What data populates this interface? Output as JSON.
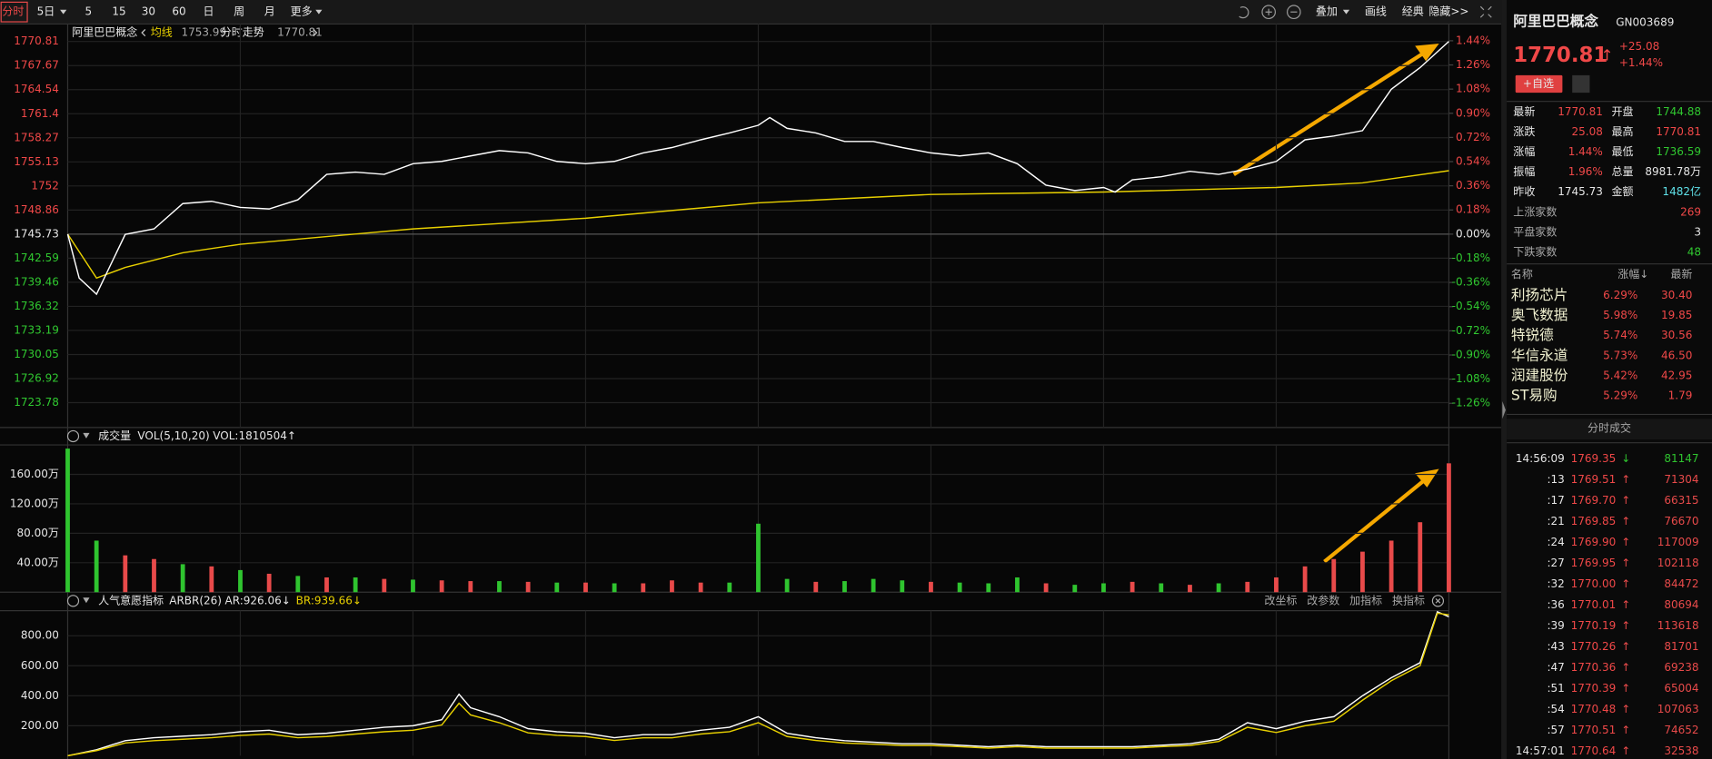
{
  "toolbar": {
    "left": [
      "分时",
      "5日",
      "5",
      "15",
      "30",
      "60",
      "日",
      "周",
      "月",
      "更多"
    ],
    "right": [
      "叠加",
      "画线",
      "经典",
      "隐藏>>"
    ]
  },
  "chart_data": [
    {
      "type": "line",
      "title": "阿里巴巴概念",
      "xlim": [
        0,
        240
      ],
      "ylim": [
        1720.55,
        1771.95
      ],
      "yticks": [
        1770.81,
        1767.67,
        1764.54,
        1761.4,
        1758.27,
        1755.13,
        1752,
        1748.86,
        1745.73,
        1742.59,
        1739.46,
        1736.32,
        1733.19,
        1730.05,
        1726.92,
        1723.78
      ],
      "y2lim": [
        -1.44,
        1.5
      ],
      "y2ticks": [
        {
          "value": 1.44,
          "label": "1.44%"
        },
        {
          "value": 1.26,
          "label": "1.26%"
        },
        {
          "value": 1.08,
          "label": "1.08%"
        },
        {
          "value": 0.9,
          "label": "0.90%"
        },
        {
          "value": 0.72,
          "label": "0.72%"
        },
        {
          "value": 0.54,
          "label": "0.54%"
        },
        {
          "value": 0.36,
          "label": "0.36%"
        },
        {
          "value": 0.18,
          "label": "0.18%"
        },
        {
          "value": 0,
          "label": "0.00%"
        },
        {
          "value": -0.18,
          "label": "-0.18%"
        },
        {
          "value": -0.36,
          "label": "-0.36%"
        },
        {
          "value": -0.54,
          "label": "-0.54%"
        },
        {
          "value": -0.72,
          "label": "-0.72%"
        },
        {
          "value": -0.9,
          "label": "-0.90%"
        },
        {
          "value": -1.08,
          "label": "-1.08%"
        },
        {
          "value": -1.26,
          "label": "-1.26%"
        }
      ],
      "series": [
        {
          "name": "均线",
          "color": "#e8d000",
          "x": [
            0,
            5,
            10,
            20,
            30,
            60,
            90,
            120,
            150,
            180,
            210,
            225,
            240
          ],
          "values": [
            1745.73,
            1740.0,
            1741.4,
            1743.3,
            1744.4,
            1746.4,
            1747.8,
            1749.8,
            1750.9,
            1751.2,
            1751.8,
            1752.4,
            1753.99
          ]
        },
        {
          "name": "分时走势",
          "color": "#ffffff",
          "x": [
            0,
            2,
            5,
            10,
            15,
            20,
            25,
            30,
            35,
            40,
            45,
            50,
            55,
            60,
            65,
            70,
            75,
            80,
            85,
            90,
            95,
            100,
            105,
            110,
            115,
            120,
            122,
            125,
            130,
            135,
            140,
            145,
            150,
            155,
            160,
            165,
            170,
            175,
            180,
            182,
            185,
            190,
            195,
            200,
            205,
            210,
            215,
            220,
            225,
            230,
            235,
            240
          ],
          "values": [
            1745.73,
            1740.0,
            1737.9,
            1745.7,
            1746.4,
            1749.7,
            1750.0,
            1749.2,
            1749.0,
            1750.2,
            1753.5,
            1753.8,
            1753.5,
            1754.9,
            1755.2,
            1755.9,
            1756.6,
            1756.3,
            1755.2,
            1754.9,
            1755.2,
            1756.3,
            1757.0,
            1758.0,
            1758.9,
            1759.9,
            1760.9,
            1759.5,
            1758.9,
            1757.8,
            1757.8,
            1757.0,
            1756.3,
            1755.9,
            1756.3,
            1754.9,
            1752.1,
            1751.4,
            1751.8,
            1751.2,
            1752.8,
            1753.2,
            1753.9,
            1753.5,
            1754.2,
            1755.2,
            1758.0,
            1758.5,
            1759.2,
            1764.6,
            1767.4,
            1770.81
          ]
        }
      ]
    },
    {
      "type": "bar",
      "title": "成交量",
      "indicator": "VOL(5,10,20)",
      "readout": "VOL:1810504↑",
      "xlim": [
        0,
        240
      ],
      "ylim": [
        0,
        200
      ],
      "yticks": [
        {
          "value": 40,
          "label": "40.00万"
        },
        {
          "value": 80,
          "label": "80.00万"
        },
        {
          "value": 120,
          "label": "120.00万"
        },
        {
          "value": 160,
          "label": "160.00万"
        }
      ],
      "x": [
        0,
        5,
        10,
        15,
        20,
        25,
        30,
        35,
        40,
        45,
        50,
        55,
        60,
        65,
        70,
        75,
        80,
        85,
        90,
        95,
        100,
        105,
        110,
        115,
        120,
        125,
        130,
        135,
        140,
        145,
        150,
        155,
        160,
        165,
        170,
        175,
        180,
        185,
        190,
        195,
        200,
        205,
        210,
        215,
        220,
        225,
        230,
        235,
        240
      ],
      "values": [
        195,
        70,
        50,
        45,
        38,
        35,
        30,
        25,
        22,
        20,
        20,
        18,
        17,
        16,
        15,
        15,
        14,
        13,
        13,
        12,
        12,
        16,
        13,
        13,
        93,
        18,
        14,
        15,
        18,
        16,
        14,
        13,
        12,
        20,
        12,
        10,
        12,
        14,
        12,
        10,
        12,
        14,
        20,
        35,
        45,
        55,
        70,
        95,
        175
      ],
      "colors": [
        "#2fc42f",
        "#2fc42f",
        "#e84a4a",
        "#e84a4a",
        "#2fc42f",
        "#e84a4a",
        "#2fc42f",
        "#e84a4a",
        "#2fc42f",
        "#e84a4a",
        "#2fc42f",
        "#e84a4a",
        "#2fc42f",
        "#e84a4a",
        "#e84a4a",
        "#2fc42f",
        "#e84a4a",
        "#2fc42f",
        "#e84a4a",
        "#2fc42f",
        "#e84a4a",
        "#e84a4a",
        "#e84a4a",
        "#2fc42f",
        "#2fc42f",
        "#2fc42f",
        "#e84a4a",
        "#2fc42f",
        "#2fc42f",
        "#2fc42f",
        "#e84a4a",
        "#2fc42f",
        "#2fc42f",
        "#2fc42f",
        "#e84a4a",
        "#2fc42f",
        "#2fc42f",
        "#e84a4a",
        "#2fc42f",
        "#e84a4a",
        "#2fc42f",
        "#e84a4a",
        "#e84a4a",
        "#e84a4a",
        "#e84a4a",
        "#e84a4a",
        "#e84a4a",
        "#e84a4a",
        "#e84a4a"
      ]
    },
    {
      "type": "line",
      "title": "人气意愿指标",
      "indicator": "ARBR(26)",
      "buttons": [
        "改坐标",
        "改参数",
        "加指标",
        "换指标"
      ],
      "xlim": [
        0,
        240
      ],
      "ylim": [
        0,
        967
      ],
      "yticks": [
        {
          "value": 200,
          "label": "200.00"
        },
        {
          "value": 400,
          "label": "400.00"
        },
        {
          "value": 600,
          "label": "600.00"
        },
        {
          "value": 800,
          "label": "800.00"
        }
      ],
      "series": [
        {
          "name": "AR",
          "readout": "AR:926.06↓",
          "color": "#ffffff",
          "x": [
            0,
            5,
            10,
            15,
            20,
            25,
            30,
            35,
            40,
            45,
            50,
            55,
            60,
            65,
            68,
            70,
            75,
            80,
            85,
            90,
            95,
            100,
            105,
            110,
            115,
            120,
            125,
            130,
            135,
            140,
            145,
            150,
            155,
            160,
            165,
            170,
            175,
            180,
            185,
            190,
            195,
            200,
            205,
            210,
            215,
            220,
            225,
            230,
            235,
            238,
            240
          ],
          "values": [
            0,
            40,
            100,
            120,
            130,
            140,
            160,
            170,
            140,
            150,
            170,
            190,
            200,
            240,
            410,
            320,
            260,
            180,
            160,
            150,
            120,
            140,
            140,
            170,
            190,
            260,
            150,
            120,
            100,
            90,
            80,
            80,
            70,
            60,
            70,
            60,
            60,
            60,
            60,
            70,
            80,
            110,
            220,
            180,
            230,
            260,
            400,
            520,
            620,
            960,
            926.06
          ]
        },
        {
          "name": "BR",
          "readout": "BR:939.66↓",
          "color": "#e8d000",
          "x": [
            0,
            5,
            10,
            15,
            20,
            25,
            30,
            35,
            40,
            45,
            50,
            55,
            60,
            65,
            68,
            70,
            75,
            80,
            85,
            90,
            95,
            100,
            105,
            110,
            115,
            120,
            125,
            130,
            135,
            140,
            145,
            150,
            155,
            160,
            165,
            170,
            175,
            180,
            185,
            190,
            195,
            200,
            205,
            210,
            215,
            220,
            225,
            230,
            235,
            238,
            240
          ],
          "values": [
            0,
            34,
            85,
            100,
            110,
            120,
            135,
            145,
            120,
            128,
            145,
            160,
            170,
            205,
            350,
            272,
            220,
            153,
            136,
            128,
            102,
            119,
            119,
            145,
            160,
            220,
            128,
            102,
            85,
            77,
            68,
            68,
            60,
            51,
            60,
            51,
            51,
            51,
            51,
            60,
            68,
            95,
            190,
            155,
            200,
            230,
            370,
            500,
            600,
            950,
            939.66
          ]
        }
      ]
    }
  ],
  "quote": {
    "name": "阿里巴巴概念",
    "code": "GN003689",
    "price": "1770.81",
    "arrow": "↑",
    "change": "+25.08",
    "percent": "+1.44%",
    "button": "+自选",
    "rows": [
      [
        "最新",
        "1770.81",
        "开盘",
        "1744.88"
      ],
      [
        "涨跌",
        "25.08",
        "最高",
        "1770.81"
      ],
      [
        "涨幅",
        "1.44%",
        "最低",
        "1736.59"
      ],
      [
        "振幅",
        "1.96%",
        "总量",
        "8981.78万"
      ],
      [
        "昨收",
        "1745.73",
        "金额",
        "1482亿"
      ]
    ],
    "counts": [
      [
        "上涨家数",
        "269"
      ],
      [
        "平盘家数",
        "3"
      ],
      [
        "下跌家数",
        "48"
      ]
    ]
  },
  "constituents": {
    "header": [
      "名称",
      "涨幅↓",
      "最新"
    ],
    "rows": [
      [
        "利扬芯片",
        "6.29%",
        "30.40"
      ],
      [
        "奥飞数据",
        "5.98%",
        "19.85"
      ],
      [
        "特锐德",
        "5.74%",
        "30.56"
      ],
      [
        "华信永道",
        "5.73%",
        "46.50"
      ],
      [
        "润建股份",
        "5.42%",
        "42.95"
      ],
      [
        "ST易购",
        "5.29%",
        "1.79"
      ]
    ]
  },
  "trades": {
    "title": "分时成交",
    "rows": [
      [
        "14:56:09",
        "1769.35",
        "↓",
        "81147"
      ],
      [
        ":13",
        "1769.51",
        "↑",
        "71304"
      ],
      [
        ":17",
        "1769.70",
        "↑",
        "66315"
      ],
      [
        ":21",
        "1769.85",
        "↑",
        "76670"
      ],
      [
        ":24",
        "1769.90",
        "↑",
        "117009"
      ],
      [
        ":27",
        "1769.95",
        "↑",
        "102118"
      ],
      [
        ":32",
        "1770.00",
        "↑",
        "84472"
      ],
      [
        ":36",
        "1770.01",
        "↑",
        "80694"
      ],
      [
        ":39",
        "1770.19",
        "↑",
        "113618"
      ],
      [
        ":43",
        "1770.26",
        "↑",
        "81701"
      ],
      [
        ":47",
        "1770.36",
        "↑",
        "69238"
      ],
      [
        ":51",
        "1770.39",
        "↑",
        "65004"
      ],
      [
        ":54",
        "1770.48",
        "↑",
        "107063"
      ],
      [
        ":57",
        "1770.51",
        "↑",
        "74652"
      ],
      [
        "14:57:01",
        "1770.64",
        "↑",
        "32538"
      ]
    ],
    "colors": [
      "#2fc42f",
      "#e84a4a",
      "#e84a4a",
      "#e84a4a",
      "#e84a4a",
      "#e84a4a",
      "#e84a4a",
      "#e84a4a",
      "#e84a4a",
      "#e84a4a",
      "#e84a4a",
      "#e84a4a",
      "#e84a4a",
      "#e84a4a",
      "#e84a4a"
    ]
  }
}
